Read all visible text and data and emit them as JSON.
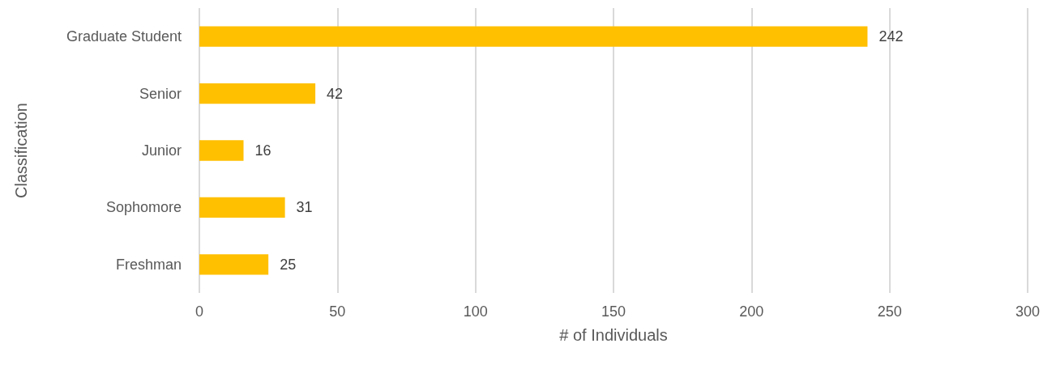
{
  "chart_data": {
    "type": "bar",
    "orientation": "horizontal",
    "categories": [
      "Graduate Student",
      "Senior",
      "Junior",
      "Sophomore",
      "Freshman"
    ],
    "values": [
      242,
      42,
      16,
      31,
      25
    ],
    "color": "#ffc000",
    "xlim": [
      0,
      300
    ],
    "xticks": [
      0,
      50,
      100,
      150,
      200,
      250,
      300
    ],
    "xlabel": "# of Individuals",
    "ylabel": "Classification",
    "grid": "x",
    "data_labels": true
  }
}
